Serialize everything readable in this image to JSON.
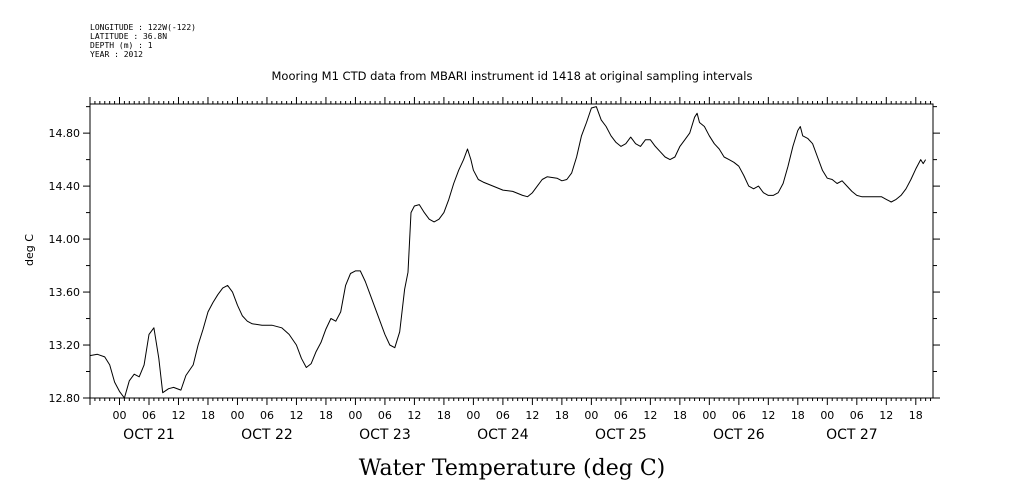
{
  "meta": {
    "longitude": "LONGITUDE : 122W(-122)",
    "latitude": "LATITUDE : 36.8N",
    "depth": "DEPTH (m) : 1",
    "year": "YEAR : 2012"
  },
  "chart_data": {
    "type": "line",
    "title": "Mooring M1 CTD data from MBARI instrument id 1418 at original sampling intervals",
    "xlabel": "Water Temperature (deg C)",
    "ylabel": "deg C",
    "x_unit": "hours from OCT 20 18:00 (2012)",
    "xlim": [
      0,
      171.5
    ],
    "ylim": [
      12.8,
      15.02
    ],
    "yticks": [
      12.8,
      13.2,
      13.6,
      14.0,
      14.4,
      14.8
    ],
    "ytick_labels": [
      "12.80",
      "13.20",
      "13.60",
      "14.00",
      "14.40",
      "14.80"
    ],
    "hour_ticks": [
      6,
      12,
      18,
      24,
      30,
      36,
      42,
      48,
      54,
      60,
      66,
      72,
      78,
      84,
      90,
      96,
      102,
      108,
      114,
      120,
      126,
      132,
      138,
      144,
      150,
      156,
      162,
      168
    ],
    "hour_labels": [
      "00",
      "06",
      "12",
      "18",
      "00",
      "06",
      "12",
      "18",
      "00",
      "06",
      "12",
      "18",
      "00",
      "06",
      "12",
      "18",
      "00",
      "06",
      "12",
      "18",
      "00",
      "06",
      "12",
      "18",
      "00",
      "06",
      "12",
      "18"
    ],
    "day_labels": [
      {
        "x": 12,
        "label": "OCT 21"
      },
      {
        "x": 36,
        "label": "OCT 22"
      },
      {
        "x": 60,
        "label": "OCT 23"
      },
      {
        "x": 84,
        "label": "OCT 24"
      },
      {
        "x": 108,
        "label": "OCT 25"
      },
      {
        "x": 132,
        "label": "OCT 26"
      },
      {
        "x": 155,
        "label": "OCT 27"
      }
    ],
    "grid": false,
    "series": [
      {
        "points": [
          [
            0,
            13.12
          ],
          [
            1.5,
            13.13
          ],
          [
            3,
            13.11
          ],
          [
            4,
            13.05
          ],
          [
            5,
            12.92
          ],
          [
            6,
            12.85
          ],
          [
            7,
            12.8
          ],
          [
            8,
            12.93
          ],
          [
            9,
            12.98
          ],
          [
            10,
            12.96
          ],
          [
            11,
            13.05
          ],
          [
            12,
            13.28
          ],
          [
            13,
            13.33
          ],
          [
            14,
            13.1
          ],
          [
            14.8,
            12.84
          ],
          [
            16,
            12.87
          ],
          [
            17,
            12.88
          ],
          [
            18.5,
            12.86
          ],
          [
            19.5,
            12.97
          ],
          [
            21,
            13.05
          ],
          [
            22,
            13.2
          ],
          [
            23,
            13.32
          ],
          [
            24,
            13.45
          ],
          [
            25,
            13.52
          ],
          [
            26,
            13.58
          ],
          [
            27,
            13.63
          ],
          [
            28,
            13.65
          ],
          [
            29,
            13.6
          ],
          [
            30,
            13.5
          ],
          [
            31,
            13.42
          ],
          [
            32,
            13.38
          ],
          [
            33,
            13.36
          ],
          [
            35,
            13.35
          ],
          [
            37,
            13.35
          ],
          [
            39,
            13.33
          ],
          [
            40.5,
            13.28
          ],
          [
            42,
            13.2
          ],
          [
            43,
            13.1
          ],
          [
            44,
            13.03
          ],
          [
            45,
            13.06
          ],
          [
            46,
            13.15
          ],
          [
            47,
            13.22
          ],
          [
            48,
            13.32
          ],
          [
            49,
            13.4
          ],
          [
            50,
            13.38
          ],
          [
            51,
            13.45
          ],
          [
            52,
            13.65
          ],
          [
            53,
            13.74
          ],
          [
            54,
            13.76
          ],
          [
            55,
            13.76
          ],
          [
            56,
            13.68
          ],
          [
            57,
            13.58
          ],
          [
            58,
            13.48
          ],
          [
            59,
            13.38
          ],
          [
            60,
            13.28
          ],
          [
            61,
            13.2
          ],
          [
            62,
            13.18
          ],
          [
            63,
            13.3
          ],
          [
            64,
            13.62
          ],
          [
            64.7,
            13.75
          ],
          [
            65.3,
            14.2
          ],
          [
            66,
            14.25
          ],
          [
            67,
            14.26
          ],
          [
            68,
            14.2
          ],
          [
            69,
            14.15
          ],
          [
            70,
            14.13
          ],
          [
            71,
            14.15
          ],
          [
            72,
            14.2
          ],
          [
            73,
            14.3
          ],
          [
            74,
            14.42
          ],
          [
            75,
            14.52
          ],
          [
            76,
            14.6
          ],
          [
            76.8,
            14.68
          ],
          [
            77.5,
            14.6
          ],
          [
            78,
            14.52
          ],
          [
            79,
            14.45
          ],
          [
            80,
            14.43
          ],
          [
            82,
            14.4
          ],
          [
            84,
            14.37
          ],
          [
            86,
            14.36
          ],
          [
            88,
            14.33
          ],
          [
            89,
            14.32
          ],
          [
            90,
            14.35
          ],
          [
            91,
            14.4
          ],
          [
            92,
            14.45
          ],
          [
            93,
            14.47
          ],
          [
            95,
            14.46
          ],
          [
            96,
            14.44
          ],
          [
            97,
            14.45
          ],
          [
            98,
            14.5
          ],
          [
            99,
            14.62
          ],
          [
            100,
            14.78
          ],
          [
            101,
            14.88
          ],
          [
            102,
            14.99
          ],
          [
            103,
            15.0
          ],
          [
            104,
            14.9
          ],
          [
            105,
            14.85
          ],
          [
            106,
            14.78
          ],
          [
            107,
            14.73
          ],
          [
            108,
            14.7
          ],
          [
            109,
            14.72
          ],
          [
            110,
            14.77
          ],
          [
            111,
            14.72
          ],
          [
            112,
            14.7
          ],
          [
            113,
            14.75
          ],
          [
            114,
            14.75
          ],
          [
            115,
            14.7
          ],
          [
            116,
            14.66
          ],
          [
            117,
            14.62
          ],
          [
            118,
            14.6
          ],
          [
            119,
            14.62
          ],
          [
            120,
            14.7
          ],
          [
            121,
            14.75
          ],
          [
            122,
            14.8
          ],
          [
            123,
            14.92
          ],
          [
            123.5,
            14.95
          ],
          [
            124,
            14.88
          ],
          [
            125,
            14.85
          ],
          [
            126,
            14.78
          ],
          [
            127,
            14.72
          ],
          [
            128,
            14.68
          ],
          [
            129,
            14.62
          ],
          [
            130,
            14.6
          ],
          [
            131,
            14.58
          ],
          [
            132,
            14.55
          ],
          [
            133,
            14.48
          ],
          [
            134,
            14.4
          ],
          [
            135,
            14.38
          ],
          [
            136,
            14.4
          ],
          [
            137,
            14.35
          ],
          [
            138,
            14.33
          ],
          [
            139,
            14.33
          ],
          [
            140,
            14.35
          ],
          [
            141,
            14.42
          ],
          [
            142,
            14.55
          ],
          [
            143,
            14.7
          ],
          [
            144,
            14.82
          ],
          [
            144.5,
            14.85
          ],
          [
            145,
            14.78
          ],
          [
            146,
            14.76
          ],
          [
            147,
            14.72
          ],
          [
            148,
            14.62
          ],
          [
            149,
            14.52
          ],
          [
            150,
            14.46
          ],
          [
            151,
            14.45
          ],
          [
            152,
            14.42
          ],
          [
            153,
            14.44
          ],
          [
            154,
            14.4
          ],
          [
            155,
            14.36
          ],
          [
            156,
            14.33
          ],
          [
            157,
            14.32
          ],
          [
            159,
            14.32
          ],
          [
            161,
            14.32
          ],
          [
            162,
            14.3
          ],
          [
            163,
            14.28
          ],
          [
            164,
            14.3
          ],
          [
            165,
            14.33
          ],
          [
            166,
            14.38
          ],
          [
            167,
            14.45
          ],
          [
            168,
            14.53
          ],
          [
            169,
            14.6
          ],
          [
            169.5,
            14.57
          ],
          [
            170,
            14.6
          ]
        ]
      }
    ]
  }
}
